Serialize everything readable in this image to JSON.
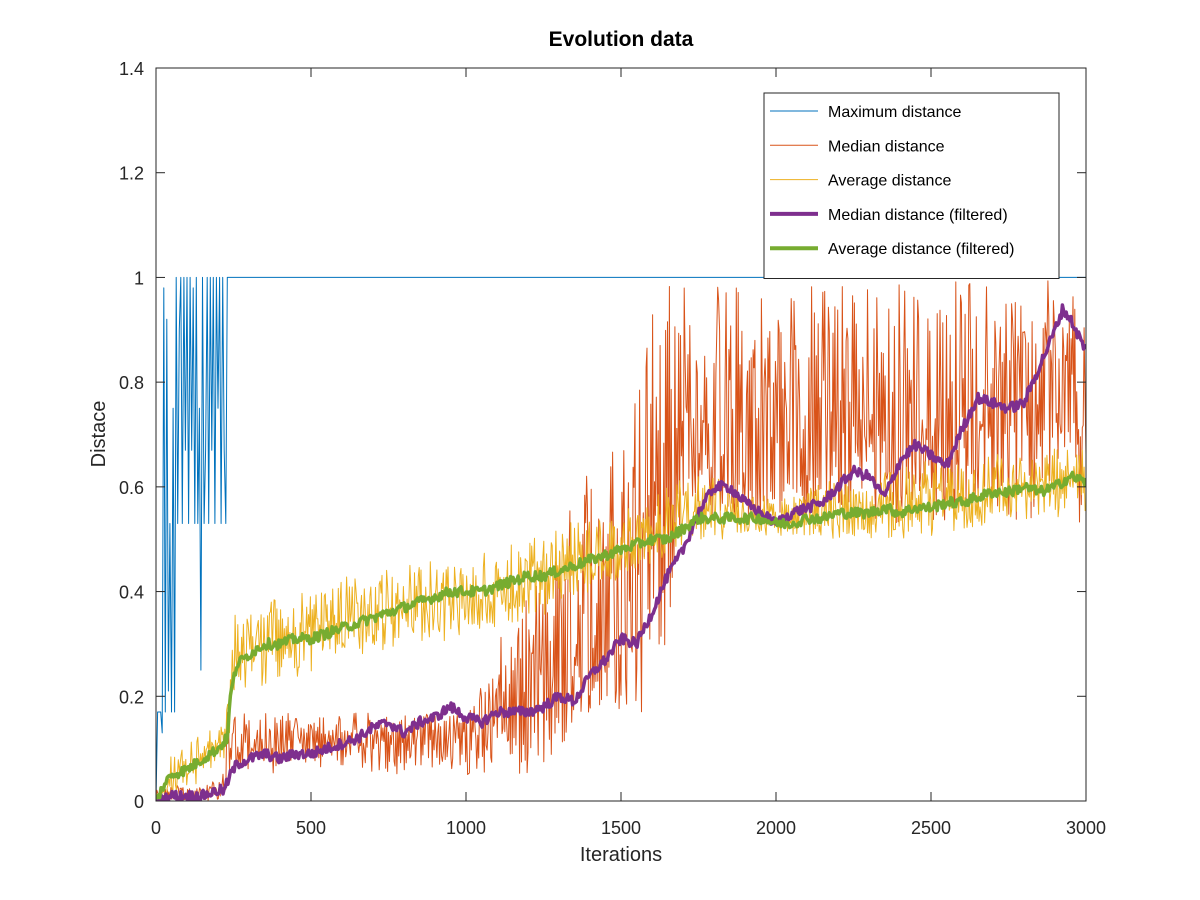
{
  "chart_data": {
    "type": "line",
    "title": "Evolution data",
    "xlabel": "Iterations",
    "ylabel": "Distace",
    "xlim": [
      0,
      3000
    ],
    "ylim": [
      0,
      1.4
    ],
    "xticks": [
      0,
      500,
      1000,
      1500,
      2000,
      2500,
      3000
    ],
    "xtick_labels": [
      "0",
      "500",
      "1000",
      "1500",
      "2000",
      "2500",
      "3000"
    ],
    "yticks": [
      0,
      0.2,
      0.4,
      0.6,
      0.8,
      1,
      1.2,
      1.4
    ],
    "ytick_labels": [
      "0",
      "0.2",
      "0.4",
      "0.6",
      "0.8",
      "1",
      "1.2",
      "1.4"
    ],
    "grid": false,
    "legend_position": "top-right",
    "series": [
      {
        "name": "Maximum distance",
        "color": "#0072BD",
        "style": "thin",
        "x": [
          0,
          5,
          10,
          15,
          20,
          25,
          30,
          35,
          40,
          45,
          50,
          55,
          60,
          65,
          70,
          75,
          80,
          85,
          90,
          95,
          100,
          105,
          110,
          115,
          120,
          125,
          130,
          135,
          140,
          145,
          150,
          155,
          160,
          165,
          170,
          175,
          180,
          185,
          190,
          195,
          200,
          205,
          210,
          215,
          220,
          225,
          230,
          240,
          3000
        ],
        "values": [
          0,
          0.17,
          0.17,
          0.17,
          0.13,
          0.98,
          0.17,
          0.92,
          0.21,
          0.53,
          0.17,
          0.75,
          0.17,
          1,
          0.53,
          0.9,
          1,
          0.53,
          1,
          0.67,
          1,
          0.53,
          1,
          0.67,
          0.98,
          0.53,
          1,
          0.53,
          0.75,
          0.25,
          1,
          0.53,
          0.67,
          1,
          0.53,
          1,
          0.67,
          1,
          0.53,
          1,
          0.75,
          1,
          0.53,
          1,
          0.67,
          0.53,
          1,
          1,
          1
        ]
      },
      {
        "name": "Median distance",
        "color": "#D95319",
        "style": "thin",
        "x": [
          0,
          50,
          100,
          150,
          200,
          230,
          240,
          300,
          400,
          500,
          600,
          700,
          800,
          900,
          1000,
          1100,
          1200,
          1300,
          1400,
          1500,
          1600,
          1650,
          1700,
          1800,
          1900,
          2000,
          2100,
          2200,
          2300,
          2400,
          2500,
          2600,
          2700,
          2800,
          2900,
          3000
        ],
        "values": [
          0,
          0.01,
          0.01,
          0.01,
          0.02,
          0.03,
          0.1,
          0.1,
          0.12,
          0.12,
          0.13,
          0.13,
          0.12,
          0.14,
          0.15,
          0.17,
          0.17,
          0.17,
          0.2,
          0.4,
          0.55,
          0.6,
          0.6,
          0.7,
          0.6,
          0.6,
          0.62,
          0.65,
          0.7,
          0.7,
          0.7,
          0.72,
          0.75,
          0.8,
          0.85,
          0.85
        ],
        "band_low": [
          0,
          0,
          0,
          0,
          0,
          0.02,
          0.05,
          0.05,
          0.05,
          0.05,
          0.05,
          0.05,
          0.05,
          0.05,
          0.05,
          0.05,
          0.05,
          0.05,
          0.17,
          0.17,
          0.17,
          0.17,
          0.53,
          0.53,
          0.53,
          0.53,
          0.53,
          0.53,
          0.53,
          0.53,
          0.53,
          0.53,
          0.53,
          0.53,
          0.53,
          0.53
        ],
        "band_high": [
          0.02,
          0.03,
          0.03,
          0.03,
          0.04,
          0.17,
          0.17,
          0.17,
          0.17,
          0.17,
          0.17,
          0.17,
          0.17,
          0.17,
          0.17,
          0.3,
          0.4,
          0.5,
          0.7,
          0.7,
          1,
          1,
          1,
          1,
          1,
          1,
          1,
          1,
          1,
          1,
          1,
          1,
          1,
          1,
          1,
          1
        ]
      },
      {
        "name": "Average distance",
        "color": "#EDB120",
        "style": "thin",
        "x": [
          0,
          50,
          100,
          150,
          200,
          230,
          250,
          300,
          400,
          500,
          600,
          700,
          800,
          900,
          1000,
          1100,
          1200,
          1300,
          1400,
          1500,
          1600,
          1700,
          1800,
          1900,
          2000,
          2100,
          2200,
          2300,
          2400,
          2500,
          2600,
          2700,
          2800,
          2900,
          3000
        ],
        "values": [
          0,
          0.05,
          0.07,
          0.08,
          0.1,
          0.12,
          0.26,
          0.3,
          0.31,
          0.32,
          0.34,
          0.36,
          0.37,
          0.39,
          0.4,
          0.41,
          0.43,
          0.43,
          0.45,
          0.47,
          0.5,
          0.52,
          0.54,
          0.54,
          0.53,
          0.54,
          0.55,
          0.55,
          0.56,
          0.57,
          0.58,
          0.59,
          0.6,
          0.61,
          0.61
        ],
        "band_low": [
          0,
          0,
          0.02,
          0.04,
          0.06,
          0.08,
          0.18,
          0.22,
          0.22,
          0.24,
          0.26,
          0.28,
          0.3,
          0.3,
          0.32,
          0.33,
          0.35,
          0.36,
          0.4,
          0.42,
          0.45,
          0.48,
          0.5,
          0.5,
          0.5,
          0.5,
          0.5,
          0.5,
          0.5,
          0.5,
          0.52,
          0.53,
          0.53,
          0.54,
          0.55
        ],
        "band_high": [
          0.02,
          0.1,
          0.12,
          0.13,
          0.14,
          0.18,
          0.36,
          0.37,
          0.4,
          0.41,
          0.43,
          0.44,
          0.45,
          0.46,
          0.47,
          0.48,
          0.5,
          0.52,
          0.55,
          0.56,
          0.58,
          0.62,
          0.62,
          0.6,
          0.58,
          0.6,
          0.62,
          0.62,
          0.64,
          0.65,
          0.66,
          0.66,
          0.68,
          0.68,
          0.68
        ]
      },
      {
        "name": "Median distance (filtered)",
        "color": "#7E2F8E",
        "style": "thick",
        "x": [
          0,
          50,
          100,
          150,
          200,
          220,
          240,
          260,
          300,
          350,
          400,
          450,
          500,
          550,
          600,
          650,
          700,
          750,
          800,
          850,
          900,
          950,
          1000,
          1050,
          1100,
          1150,
          1200,
          1250,
          1300,
          1350,
          1400,
          1450,
          1500,
          1550,
          1600,
          1650,
          1700,
          1750,
          1800,
          1850,
          1900,
          1950,
          2000,
          2050,
          2100,
          2150,
          2200,
          2250,
          2300,
          2350,
          2400,
          2450,
          2500,
          2550,
          2600,
          2650,
          2700,
          2750,
          2800,
          2850,
          2900,
          2925,
          2950,
          3000
        ],
        "values": [
          0,
          0.01,
          0.01,
          0.01,
          0.02,
          0.02,
          0.05,
          0.07,
          0.08,
          0.09,
          0.08,
          0.09,
          0.09,
          0.1,
          0.11,
          0.12,
          0.14,
          0.15,
          0.13,
          0.15,
          0.16,
          0.18,
          0.16,
          0.15,
          0.17,
          0.17,
          0.17,
          0.18,
          0.2,
          0.19,
          0.24,
          0.27,
          0.31,
          0.3,
          0.36,
          0.43,
          0.48,
          0.55,
          0.6,
          0.6,
          0.57,
          0.55,
          0.53,
          0.55,
          0.56,
          0.57,
          0.6,
          0.63,
          0.62,
          0.58,
          0.65,
          0.68,
          0.66,
          0.64,
          0.71,
          0.77,
          0.76,
          0.75,
          0.76,
          0.83,
          0.9,
          0.94,
          0.92,
          0.86
        ]
      },
      {
        "name": "Average distance (filtered)",
        "color": "#77AC30",
        "style": "thick",
        "x": [
          0,
          25,
          50,
          100,
          150,
          200,
          230,
          240,
          260,
          300,
          350,
          400,
          450,
          500,
          550,
          600,
          650,
          700,
          750,
          800,
          850,
          900,
          950,
          1000,
          1050,
          1100,
          1150,
          1200,
          1250,
          1300,
          1350,
          1400,
          1450,
          1500,
          1550,
          1600,
          1650,
          1700,
          1750,
          1800,
          1850,
          1900,
          1950,
          2000,
          2050,
          2100,
          2150,
          2200,
          2250,
          2300,
          2350,
          2400,
          2450,
          2500,
          2550,
          2600,
          2650,
          2700,
          2750,
          2800,
          2850,
          2900,
          2950,
          3000
        ],
        "values": [
          0,
          0.03,
          0.05,
          0.06,
          0.08,
          0.1,
          0.12,
          0.2,
          0.26,
          0.28,
          0.3,
          0.3,
          0.31,
          0.31,
          0.32,
          0.33,
          0.34,
          0.35,
          0.36,
          0.37,
          0.38,
          0.39,
          0.4,
          0.4,
          0.4,
          0.41,
          0.42,
          0.43,
          0.43,
          0.44,
          0.45,
          0.46,
          0.47,
          0.48,
          0.49,
          0.5,
          0.5,
          0.52,
          0.54,
          0.54,
          0.54,
          0.54,
          0.54,
          0.53,
          0.53,
          0.54,
          0.54,
          0.55,
          0.55,
          0.55,
          0.56,
          0.55,
          0.56,
          0.56,
          0.57,
          0.57,
          0.58,
          0.59,
          0.59,
          0.6,
          0.59,
          0.6,
          0.62,
          0.61
        ]
      }
    ]
  }
}
